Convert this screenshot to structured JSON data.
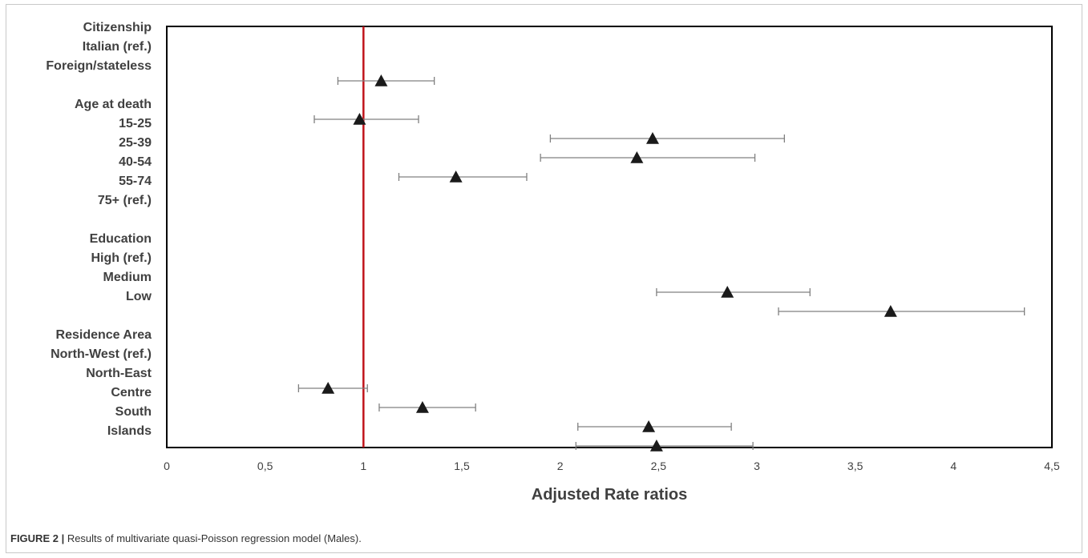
{
  "chart_data": {
    "type": "scatter",
    "title": "",
    "xlabel": "Adjusted Rate ratios",
    "ylabel": "",
    "xlim": [
      0,
      4.5
    ],
    "xticks": [
      0,
      0.5,
      1,
      1.5,
      2,
      2.5,
      3,
      3.5,
      4,
      4.5
    ],
    "xtick_labels": [
      "0",
      "0,5",
      "1",
      "1,5",
      "2",
      "2,5",
      "3",
      "3,5",
      "4",
      "4,5"
    ],
    "reference_line": {
      "x": 1,
      "color": "#c0141b"
    },
    "marker": {
      "shape": "triangle",
      "color": "#1a1a1a"
    },
    "errorbar_color": "#808080",
    "grid": false,
    "legend": "none",
    "rows": [
      {
        "label": "Citizenship"
      },
      {
        "label": "Italian (ref.)"
      },
      {
        "label": "Foreign/stateless",
        "estimate": 1.09,
        "lower": 0.87,
        "upper": 1.36
      },
      {
        "label": ""
      },
      {
        "label": "Age at death",
        "estimate": 0.98,
        "lower": 0.75,
        "upper": 1.28
      },
      {
        "label": "15-25",
        "estimate": 2.47,
        "lower": 1.95,
        "upper": 3.14
      },
      {
        "label": "25-39",
        "estimate": 2.39,
        "lower": 1.9,
        "upper": 2.99
      },
      {
        "label": "40-54",
        "estimate": 1.47,
        "lower": 1.18,
        "upper": 1.83
      },
      {
        "label": "55-74"
      },
      {
        "label": "75+ (ref.)"
      },
      {
        "label": ""
      },
      {
        "label": "Education"
      },
      {
        "label": "High (ref.)"
      },
      {
        "label": "Medium",
        "estimate": 2.85,
        "lower": 2.49,
        "upper": 3.27
      },
      {
        "label": "Low",
        "estimate": 3.68,
        "lower": 3.11,
        "upper": 4.36
      },
      {
        "label": ""
      },
      {
        "label": "Residence Area"
      },
      {
        "label": "North-West (ref.)"
      },
      {
        "label": "North-East",
        "estimate": 0.82,
        "lower": 0.67,
        "upper": 1.02
      },
      {
        "label": "Centre",
        "estimate": 1.3,
        "lower": 1.08,
        "upper": 1.57
      },
      {
        "label": "South",
        "estimate": 2.45,
        "lower": 2.09,
        "upper": 2.87
      },
      {
        "label": "Islands",
        "estimate": 2.49,
        "lower": 2.08,
        "upper": 2.98
      }
    ]
  },
  "caption": {
    "label": "FIGURE 2 |",
    "text": " Results of multivariate quasi-Poisson regression model (Males)."
  }
}
